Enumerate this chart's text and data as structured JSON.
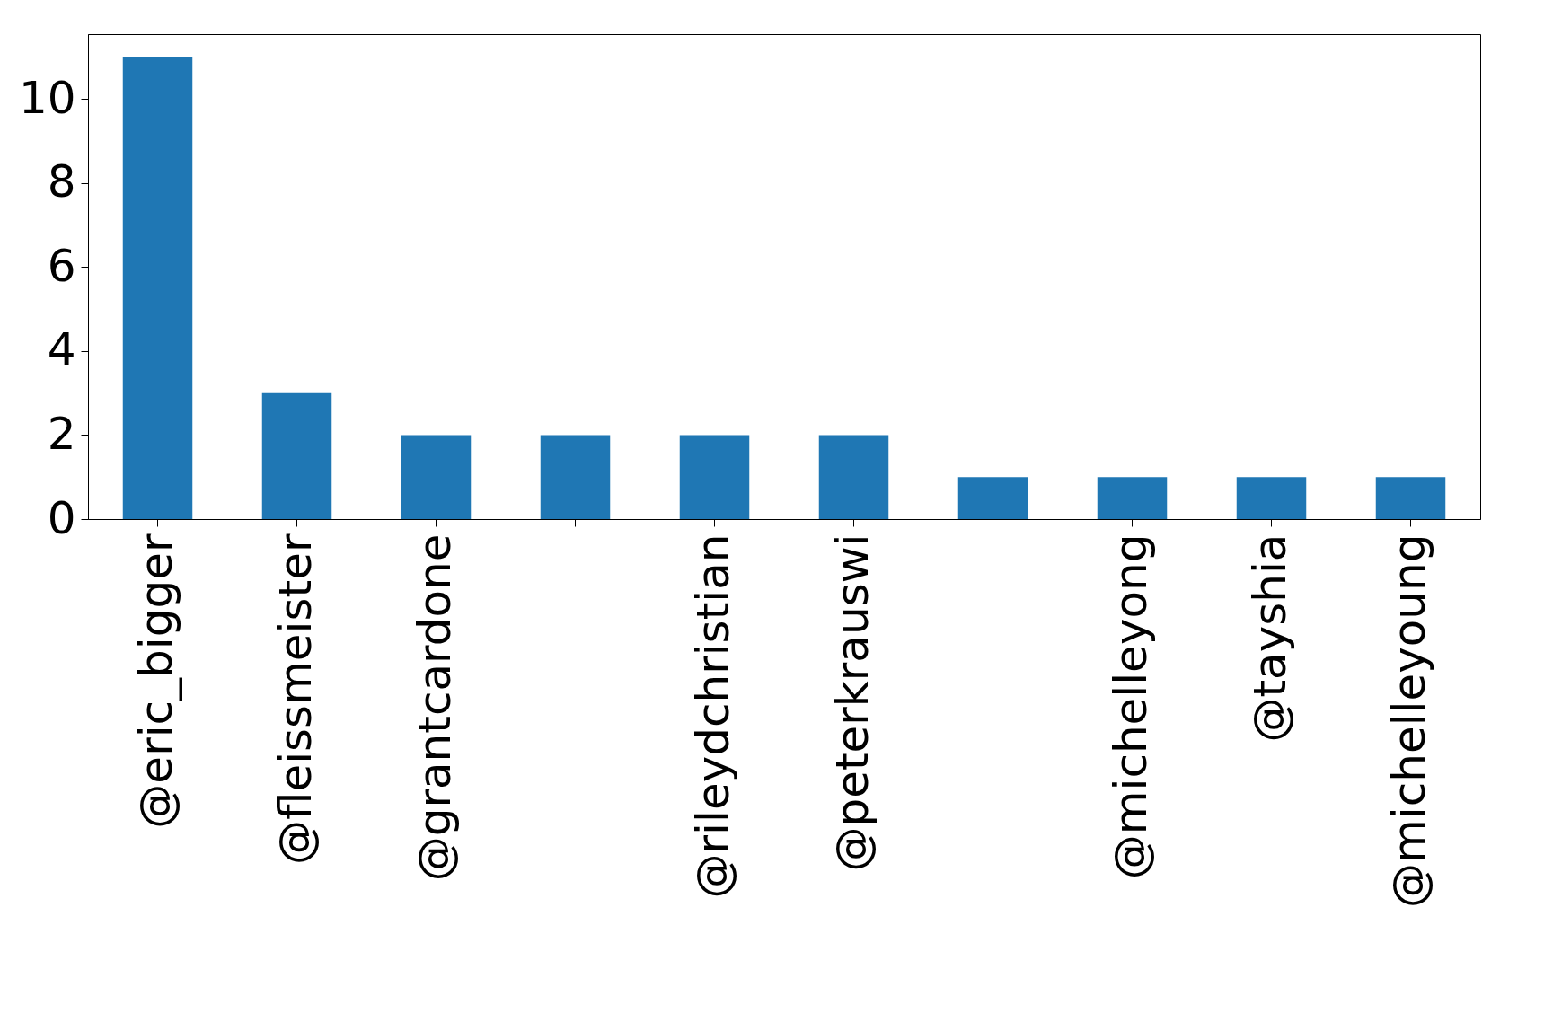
{
  "chart_data": {
    "type": "bar",
    "categories": [
      "@eric_bigger",
      "@fleissmeister",
      "@grantcardone",
      null,
      "@rileydchristian",
      "@peterkrauswi",
      null,
      "@michelleyong",
      "@tayshia",
      "@michelleyoung"
    ],
    "values": [
      11,
      3,
      2,
      2,
      2,
      2,
      1,
      1,
      1,
      1
    ],
    "color": "#1f77b4",
    "ylim": [
      0,
      11.55
    ],
    "yticks": [
      0,
      2,
      4,
      6,
      8,
      10
    ],
    "grid": false
  }
}
